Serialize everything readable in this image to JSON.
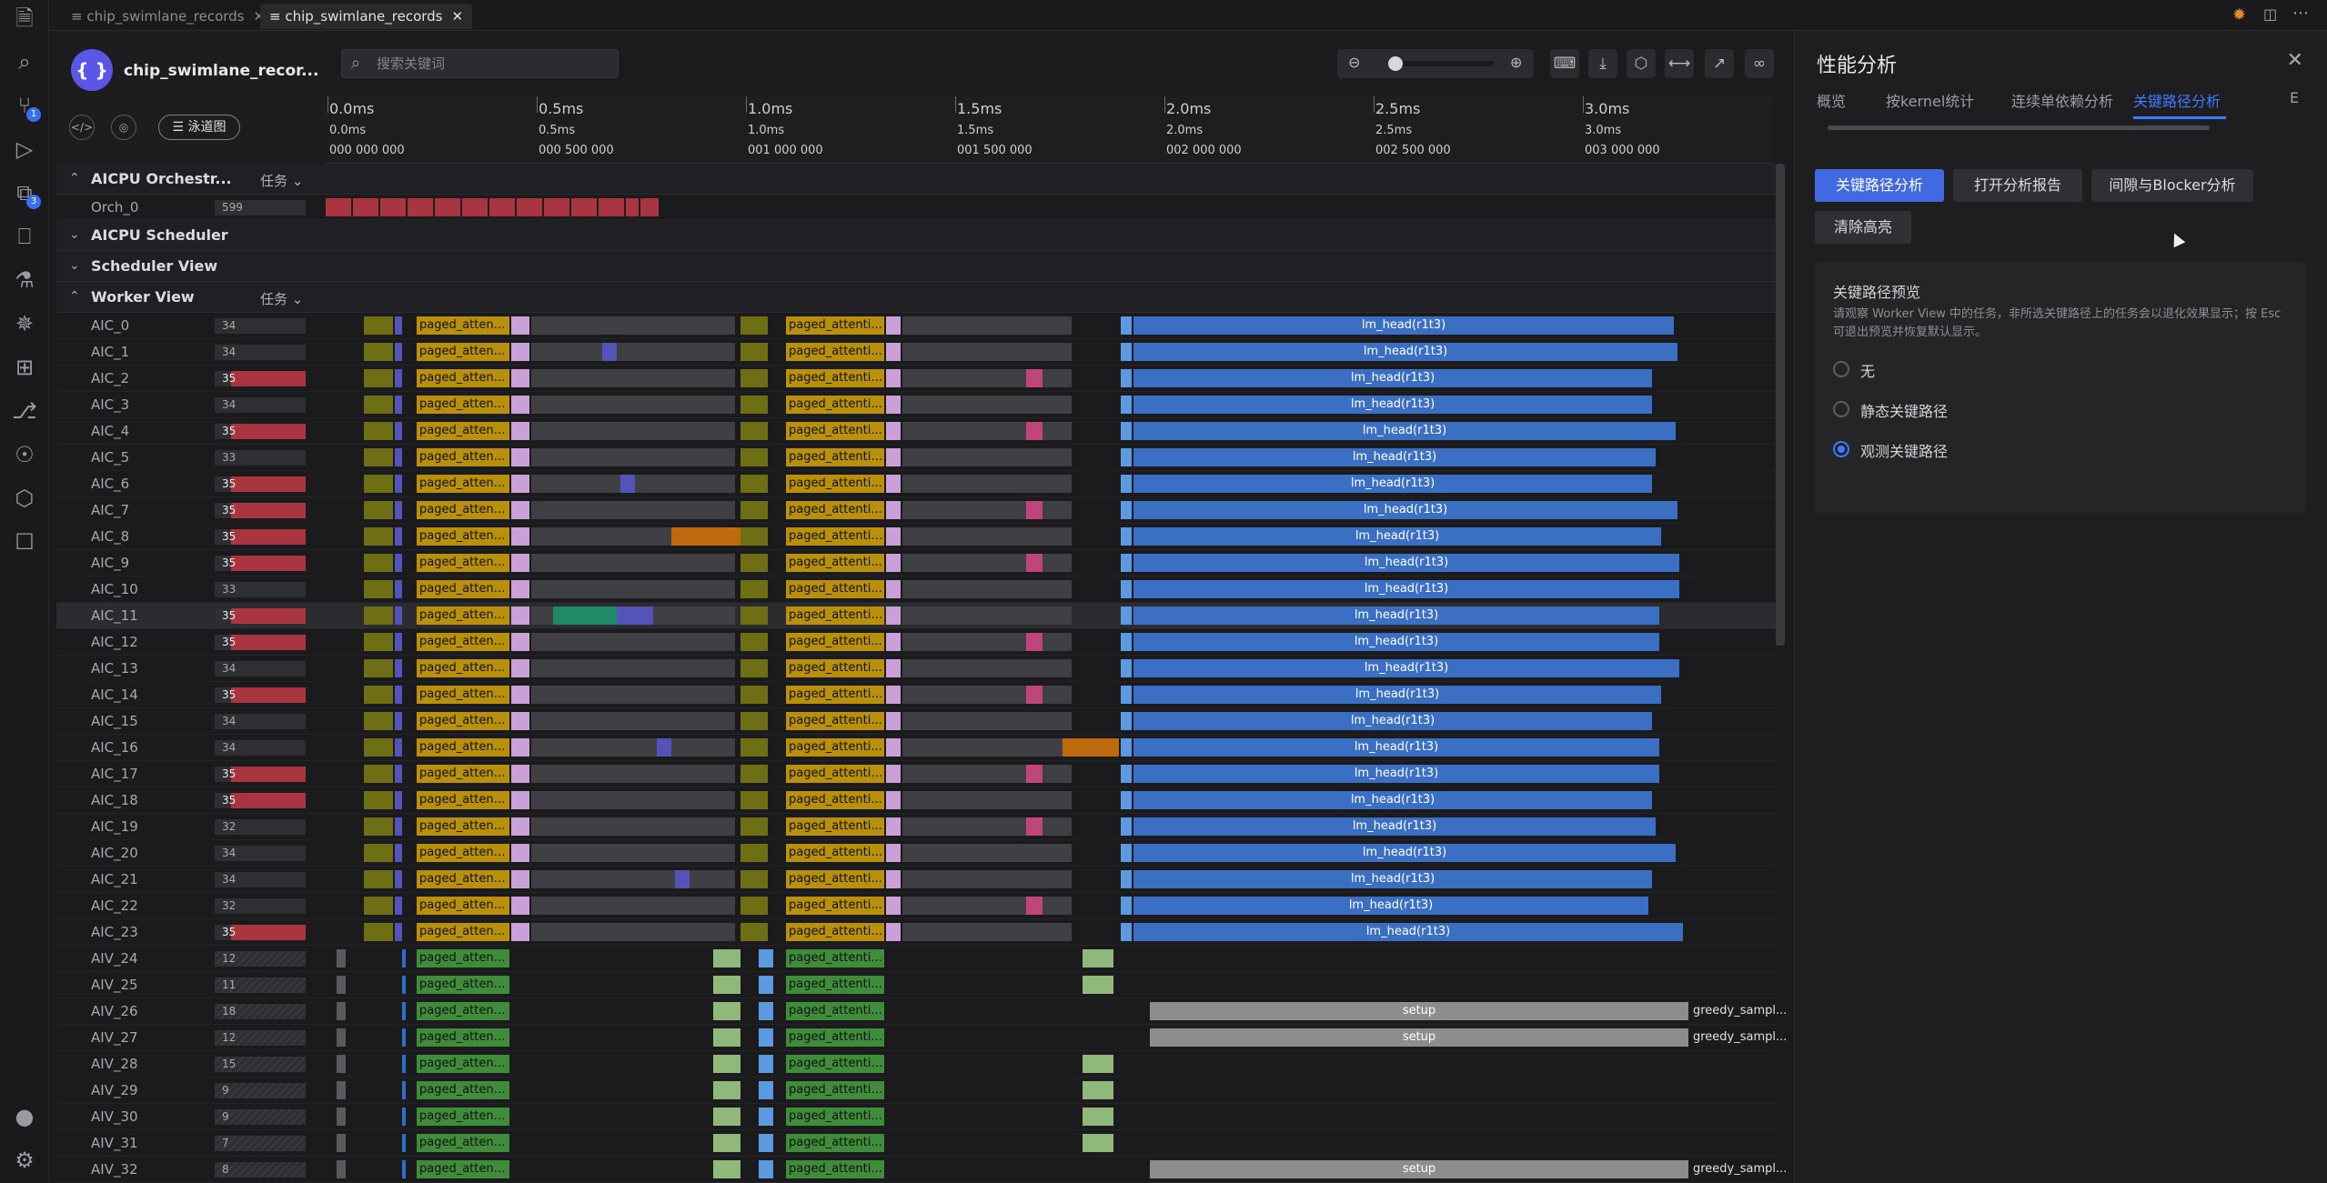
{
  "tabs": [
    {
      "label": "chip_swimlane_records",
      "active": false
    },
    {
      "label": "chip_swimlane_records",
      "active": true
    }
  ],
  "header": {
    "title": "chip_swimlane_recor...",
    "logo_glyph": "{ }",
    "swimlane_button": "泳道图"
  },
  "search": {
    "placeholder": "搜索关键词"
  },
  "ruler": {
    "ticks": [
      {
        "t1": "0.0ms",
        "t2": "0.0ms",
        "t3": "000 000 000"
      },
      {
        "t1": "0.5ms",
        "t2": "0.5ms",
        "t3": "000 500 000"
      },
      {
        "t1": "1.0ms",
        "t2": "1.0ms",
        "t3": "001 000 000"
      },
      {
        "t1": "1.5ms",
        "t2": "1.5ms",
        "t3": "001 500 000"
      },
      {
        "t1": "2.0ms",
        "t2": "2.0ms",
        "t3": "002 000 000"
      },
      {
        "t1": "2.5ms",
        "t2": "2.5ms",
        "t3": "002 500 000"
      },
      {
        "t1": "3.0ms",
        "t2": "3.0ms",
        "t3": "003 000 000"
      }
    ]
  },
  "groups": {
    "orch": {
      "title": "AICPU Orchestr...",
      "selector": "任务",
      "row": {
        "name": "Orch_0",
        "count": "599"
      }
    },
    "sched": {
      "title": "AICPU Scheduler"
    },
    "schedview": {
      "title": "Scheduler View"
    },
    "worker": {
      "title": "Worker View",
      "selector": "任务"
    }
  },
  "aic_rows": [
    {
      "name": "AIC_0",
      "count": "34",
      "label1": "paged_attent...",
      "label2": "paged_attenti...",
      "lm": "lm_head(r1t3)"
    },
    {
      "name": "AIC_1",
      "count": "34",
      "label1": "paged_attent...",
      "label2": "paged_attenti...",
      "lm": "lm_head(r1t3)"
    },
    {
      "name": "AIC_2",
      "count": "35",
      "label1": "paged_attention...",
      "label2": "paged_attention_...",
      "lm": "lm_head(r1t3)"
    },
    {
      "name": "AIC_3",
      "count": "34",
      "label1": "paged_attent...",
      "label2": "paged_attenti...",
      "lm": "lm_head(r1t3)"
    },
    {
      "name": "AIC_4",
      "count": "35",
      "label1": "paged_attent...",
      "label2": "paged_attenti...",
      "lm": "lm_head(r1t3)"
    },
    {
      "name": "AIC_5",
      "count": "33",
      "label1": "paged_attention...",
      "label2": "paged_attention_...",
      "lm": "lm_head(r1t3)"
    },
    {
      "name": "AIC_6",
      "count": "35",
      "label1": "paged_attent...",
      "label2": "paged_attenti...",
      "lm": "lm_head(r1t3)"
    },
    {
      "name": "AIC_7",
      "count": "35",
      "label1": "paged_attent...",
      "label2": "paged_attenti...",
      "lm": "lm_head(r1t3)"
    },
    {
      "name": "AIC_8",
      "count": "35",
      "label1": "paged_attention...",
      "label2": "paged_attention_...",
      "lm": "lm_head(r1t3)"
    },
    {
      "name": "AIC_9",
      "count": "35",
      "label1": "paged_attent...",
      "label2": "paged_attenti...",
      "lm": "lm_head(r1t3)"
    },
    {
      "name": "AIC_10",
      "count": "33",
      "label1": "paged_attent...",
      "label2": "paged_attenti...",
      "lm": "lm_head(r1t3)"
    },
    {
      "name": "AIC_11",
      "count": "35",
      "label1": "paged_attention...",
      "label2": "paged_attention_...",
      "lm": "lm_head(r1t3)"
    },
    {
      "name": "AIC_12",
      "count": "35",
      "label1": "paged_attenti...",
      "label2": "paged_attenti...",
      "lm": "lm_head(r1t3)"
    },
    {
      "name": "AIC_13",
      "count": "34",
      "label1": "paged_attent...",
      "label2": "paged_attenti...",
      "lm": "lm_head(r1t3)"
    },
    {
      "name": "AIC_14",
      "count": "35",
      "label1": "paged_attention...",
      "label2": "paged_attention_...",
      "lm": "lm_head(r1t3)"
    },
    {
      "name": "AIC_15",
      "count": "34",
      "label1": "paged_attent...",
      "label2": "paged_attenti...",
      "lm": "lm_head(r1t3)"
    },
    {
      "name": "AIC_16",
      "count": "34",
      "label1": "paged_attent...",
      "label2": "paged_attenti...",
      "lm": "lm_head(r1t3)"
    },
    {
      "name": "AIC_17",
      "count": "35",
      "label1": "paged_attention...",
      "label2": "paged_attention_...",
      "lm": "lm_head(r1t3)"
    },
    {
      "name": "AIC_18",
      "count": "35",
      "label1": "paged_attent...",
      "label2": "paged_attenti...",
      "lm": "lm_head(r1t3)"
    },
    {
      "name": "AIC_19",
      "count": "32",
      "label1": "paged_attent...",
      "label2": "paged_attenti...",
      "lm": "lm_head(r1t3)"
    },
    {
      "name": "AIC_20",
      "count": "34",
      "label1": "paged_attention...",
      "label2": "paged_attention_...",
      "lm": "lm_head(r1t3)"
    },
    {
      "name": "AIC_21",
      "count": "34",
      "label1": "paged_attent...",
      "label2": "paged_attenti...",
      "lm": "lm_head(r1t3)"
    },
    {
      "name": "AIC_22",
      "count": "32",
      "label1": "paged_attent...",
      "label2": "paged_attenti...",
      "lm": "lm_head(r1t3)"
    },
    {
      "name": "AIC_23",
      "count": "35",
      "label1": "paged_attention...",
      "label2": "paged_attention_...",
      "lm": "lm_head(r1t3)"
    }
  ],
  "aiv_rows": [
    {
      "name": "AIV_24",
      "count": "12",
      "label1": "paged_attent...",
      "label2": "paged_attenti...",
      "setup": "",
      "greedy": ""
    },
    {
      "name": "AIV_25",
      "count": "11",
      "label1": "paged_attent...",
      "label2": "paged_attenti...",
      "setup": "",
      "greedy": ""
    },
    {
      "name": "AIV_26",
      "count": "18",
      "label1": "paged_attent...",
      "label2": "paged_attenti...",
      "setup": "setup",
      "greedy": "greedy_sampl..."
    },
    {
      "name": "AIV_27",
      "count": "12",
      "label1": "paged_attent...",
      "label2": "paged_attenti...",
      "setup": "setup",
      "greedy": "greedy_sampl..."
    },
    {
      "name": "AIV_28",
      "count": "15",
      "label1": "paged_attention...",
      "label2": "paged_attention_...",
      "setup": "",
      "greedy": ""
    },
    {
      "name": "AIV_29",
      "count": "9",
      "label1": "paged_attention...",
      "label2": "paged_attention_...",
      "setup": "",
      "greedy": ""
    },
    {
      "name": "AIV_30",
      "count": "9",
      "label1": "paged_attent...",
      "label2": "paged_attenti...",
      "setup": "",
      "greedy": ""
    },
    {
      "name": "AIV_31",
      "count": "7",
      "label1": "paged_attent...",
      "label2": "paged_attenti...",
      "setup": "",
      "greedy": ""
    },
    {
      "name": "AIV_32",
      "count": "8",
      "label1": "paged_attent...",
      "label2": "paged_attenti...",
      "setup": "setup",
      "greedy": "greedy_sampl..."
    }
  ],
  "panel": {
    "title": "性能分析",
    "tabs": [
      "概览",
      "按kernel统计",
      "连续单依赖分析",
      "关键路径分析",
      "E"
    ],
    "buttons": {
      "critical": "关键路径分析",
      "report": "打开分析报告",
      "gap": "间隙与Blocker分析",
      "clear": "清除高亮"
    },
    "preview": {
      "title": "关键路径预览",
      "desc": "请观察 Worker View 中的任务，非所选关键路径上的任务会以退化效果显示；按 Esc 可退出预览并恢复默认显示。",
      "options": [
        "无",
        "静态关键路径",
        "观测关键路径"
      ],
      "selected": 2
    }
  },
  "colors": {
    "accent": "#4169e1",
    "lm_head": "#3b6fc4",
    "paged_cube": "#b8900c",
    "paged_vec": "#3f8c3a",
    "setup": "#8d8d8d",
    "red": "#a8353f"
  }
}
